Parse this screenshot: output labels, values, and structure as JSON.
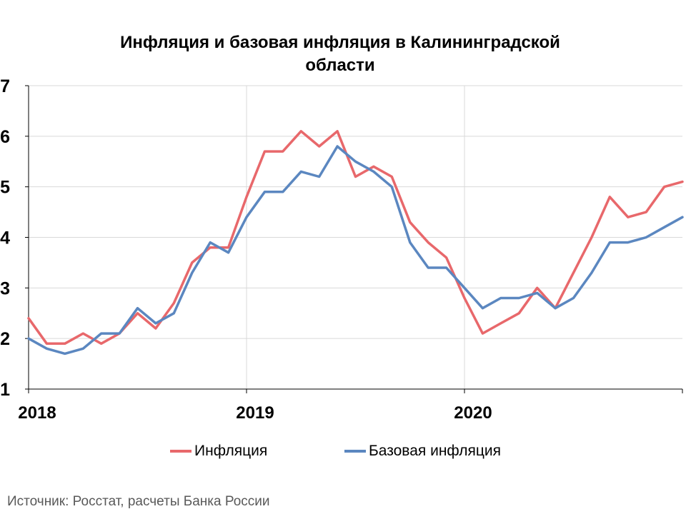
{
  "chart_data": {
    "type": "line",
    "title_line1": "Инфляция и базовая инфляция в Калининградской",
    "title_line2": "области",
    "ylim": [
      1,
      7
    ],
    "y_ticks": [
      1,
      2,
      3,
      4,
      5,
      6,
      7
    ],
    "x_range": [
      "2018-01",
      "2020-12"
    ],
    "x_tick_labels": [
      "2018",
      "2019",
      "2020"
    ],
    "x": [
      "2018-01",
      "2018-02",
      "2018-03",
      "2018-04",
      "2018-05",
      "2018-06",
      "2018-07",
      "2018-08",
      "2018-09",
      "2018-10",
      "2018-11",
      "2018-12",
      "2019-01",
      "2019-02",
      "2019-03",
      "2019-04",
      "2019-05",
      "2019-06",
      "2019-07",
      "2019-08",
      "2019-09",
      "2019-10",
      "2019-11",
      "2019-12",
      "2020-01",
      "2020-02",
      "2020-03",
      "2020-04",
      "2020-05",
      "2020-06",
      "2020-07",
      "2020-08",
      "2020-09",
      "2020-10",
      "2020-11",
      "2020-12",
      "2021-01"
    ],
    "series": [
      {
        "name": "Инфляция",
        "color": "#E8686B",
        "values": [
          2.4,
          1.9,
          1.9,
          2.1,
          1.9,
          2.1,
          2.5,
          2.2,
          2.7,
          3.5,
          3.8,
          3.8,
          4.8,
          5.7,
          5.7,
          6.1,
          5.8,
          6.1,
          5.2,
          5.4,
          5.2,
          4.3,
          3.9,
          3.6,
          2.8,
          2.1,
          2.3,
          2.5,
          3.0,
          2.6,
          3.3,
          4.0,
          4.8,
          4.4,
          4.5,
          5.0,
          5.1
        ]
      },
      {
        "name": "Базовая инфляция",
        "color": "#5B87C0",
        "values": [
          2.0,
          1.8,
          1.7,
          1.8,
          2.1,
          2.1,
          2.6,
          2.3,
          2.5,
          3.3,
          3.9,
          3.7,
          4.4,
          4.9,
          4.9,
          5.3,
          5.2,
          5.8,
          5.5,
          5.3,
          5.0,
          3.9,
          3.4,
          3.4,
          3.0,
          2.6,
          2.8,
          2.8,
          2.9,
          2.6,
          2.8,
          3.3,
          3.9,
          3.9,
          4.0,
          4.2,
          4.4
        ]
      }
    ],
    "grid": true,
    "legend_position": "bottom"
  },
  "source": "Источник: Росстат, расчеты Банка России"
}
